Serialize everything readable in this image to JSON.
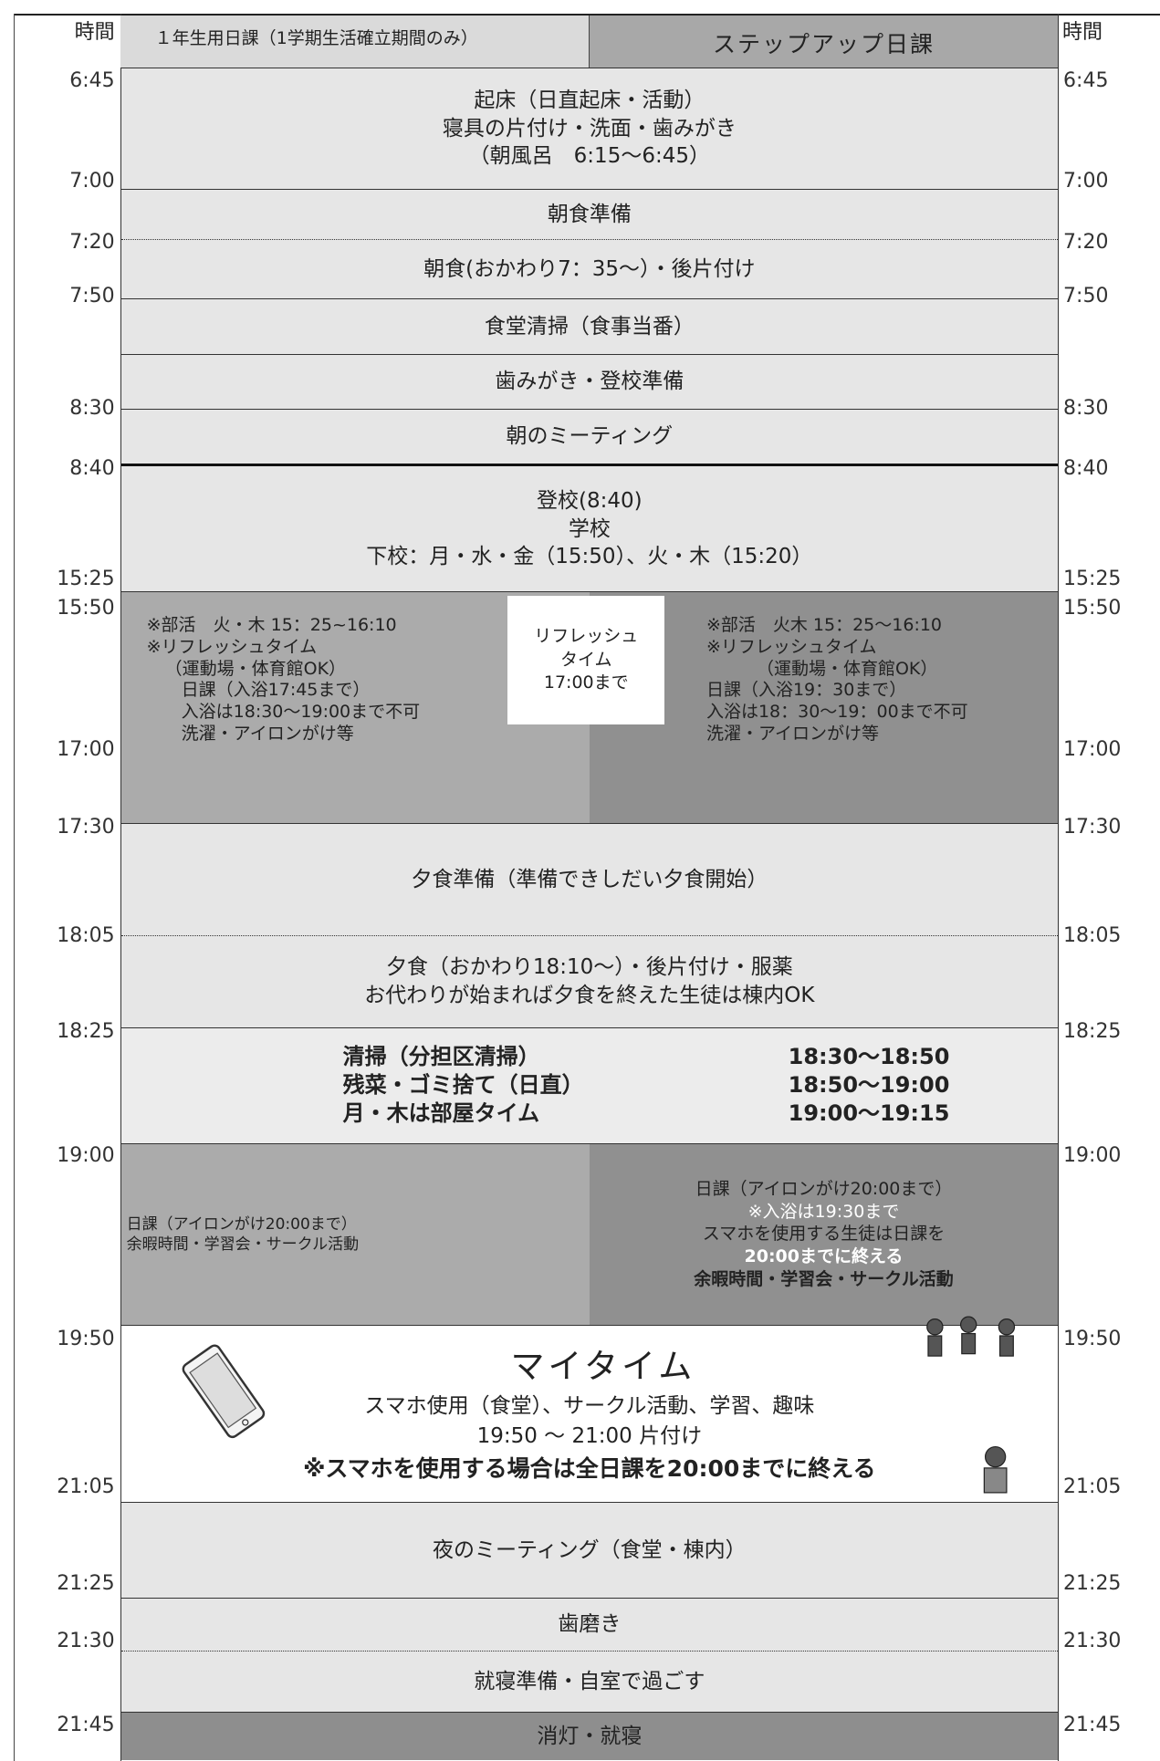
{
  "header": {
    "time_left": "時間",
    "col1": "１年生用日課（1学期生活確立期間のみ）",
    "col2": "ステップアップ日課",
    "time_right": "時間"
  },
  "left_times": [
    "6:45",
    "7:00",
    "7:20",
    "7:50",
    "8:30",
    "8:40",
    "15:25",
    "15:50",
    "17:00",
    "17:30",
    "18:05",
    "18:25",
    "19:00",
    "19:50",
    "21:05",
    "21:25",
    "21:30",
    "21:45"
  ],
  "right_times": [
    "6:45",
    "7:00",
    "7:20",
    "7:50",
    "8:30",
    "8:40",
    "15:25",
    "15:50",
    "17:00",
    "17:30",
    "18:05",
    "18:25",
    "19:00",
    "19:50",
    "21:05",
    "21:25",
    "21:30",
    "21:45"
  ],
  "rows": [
    {
      "lines": [
        "起床（日直起床・活動）",
        "寝具の片付け・洗面・歯みがき",
        "（朝風呂　6:15～6:45）"
      ]
    },
    {
      "lines": [
        "朝食準備"
      ]
    },
    {
      "lines": [
        "朝食(おかわり7：35～）・後片付け"
      ]
    },
    {
      "lines": [
        "食堂清掃（食事当番）"
      ]
    },
    {
      "lines": [
        "歯みがき・登校準備"
      ]
    },
    {
      "lines": [
        "朝のミーティング"
      ]
    },
    {
      "lines": [
        "登校(8:40)",
        "学校",
        "下校：月・水・金（15:50）、火・木（15:20）"
      ]
    },
    {
      "lines": [
        "夕食準備（準備できしだい夕食開始）"
      ]
    },
    {
      "lines": [
        "夕食（おかわり18:10～）・後片付け・服薬",
        "お代わりが始まれば夕食を終えた生徒は棟内OK"
      ]
    },
    {
      "lines": [
        "夜のミーティング（食堂・棟内）"
      ]
    },
    {
      "lines": [
        "歯磨き"
      ]
    },
    {
      "lines": [
        "就寝準備・自室で過ごす"
      ]
    },
    {
      "lines": [
        "消灯・就寝"
      ]
    }
  ],
  "afternoon": {
    "col1": [
      "※部活　火・木 15：25~16:10",
      "※リフレッシュタイム",
      "（運動場・体育館OK）",
      "日課（入浴17:45まで）",
      "入浴は18:30～19:00まで不可",
      "洗濯・アイロンがけ等"
    ],
    "refresh": [
      "リフレッシュ",
      "タイム",
      "17:00まで"
    ],
    "col2": [
      "※部活　火木 15：25～16:10",
      "※リフレッシュタイム",
      "（運動場・体育館OK）",
      "日課（入浴19：30まで）",
      "入浴は18：30～19：00まで不可",
      "洗濯・アイロンがけ等"
    ]
  },
  "cleaning": [
    {
      "task": "清掃（分担区清掃）",
      "time": "18:30～18:50"
    },
    {
      "task": "残菜・ゴミ捨て（日直）",
      "time": "18:50～19:00"
    },
    {
      "task": "月・木は部屋タイム",
      "time": "19:00～19:15"
    }
  ],
  "evening": {
    "col1": [
      "日課（アイロンがけ20:00まで）",
      "余暇時間・学習会・サークル活動"
    ],
    "col2": [
      "日課（アイロンがけ20:00まで）",
      "※入浴は19:30まで",
      "スマホを使用する生徒は日課を",
      "20:00までに終える",
      "余暇時間・学習会・サークル活動"
    ]
  },
  "mytime": {
    "title": "マイタイム",
    "lines": [
      "スマホ使用（食堂）、サークル活動、学習、趣味",
      "19:50 ～ 21:00 片付け",
      "※スマホを使用する場合は全日課を20:00までに終える"
    ]
  }
}
